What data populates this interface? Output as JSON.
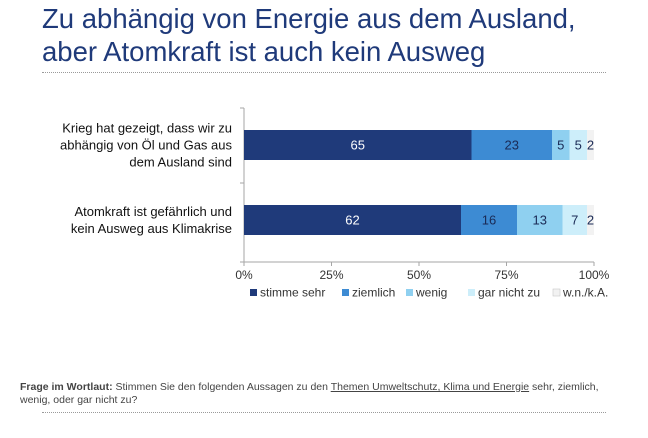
{
  "title": {
    "line1": "Zu abhängig von Energie aus dem Ausland,",
    "line2": "aber Atomkraft ist auch kein Ausweg"
  },
  "chart_data": {
    "type": "bar",
    "orientation": "horizontal",
    "stacked": true,
    "categories": [
      [
        "Krieg hat gezeigt, dass wir zu",
        "abhängig von Öl und Gas aus",
        "dem Ausland sind"
      ],
      [
        "Atomkraft ist gefährlich und",
        "kein Ausweg aus Klimakrise"
      ]
    ],
    "series": [
      {
        "name": "stimme sehr",
        "values": [
          65,
          62
        ],
        "color": "#1f3a7a",
        "label_color": "#ffffff"
      },
      {
        "name": "ziemlich",
        "values": [
          23,
          16
        ],
        "color": "#3d8bd3",
        "label_color": "#1a2a55"
      },
      {
        "name": "wenig",
        "values": [
          5,
          13
        ],
        "color": "#8fd0f0",
        "label_color": "#1a2a55"
      },
      {
        "name": "gar nicht zu",
        "values": [
          5,
          7
        ],
        "color": "#cdeefa",
        "label_color": "#1a2a55"
      },
      {
        "name": "w.n./k.A.",
        "values": [
          2,
          2
        ],
        "color": "#f2f2f2",
        "label_color": "#1a2a55"
      }
    ],
    "xlim": [
      0,
      100
    ],
    "x_ticks": [
      "0%",
      "25%",
      "50%",
      "75%",
      "100%"
    ],
    "x_tick_values": [
      0,
      25,
      50,
      75,
      100
    ],
    "legend_position": "bottom"
  },
  "footnote": {
    "label": "Frage im Wortlaut:",
    "text_before": " Stimmen Sie den folgenden Aussagen zu den ",
    "underlined": "Themen Umweltschutz, Klima und Energie",
    "text_after": " sehr, ziemlich, wenig, oder gar nicht zu?"
  }
}
